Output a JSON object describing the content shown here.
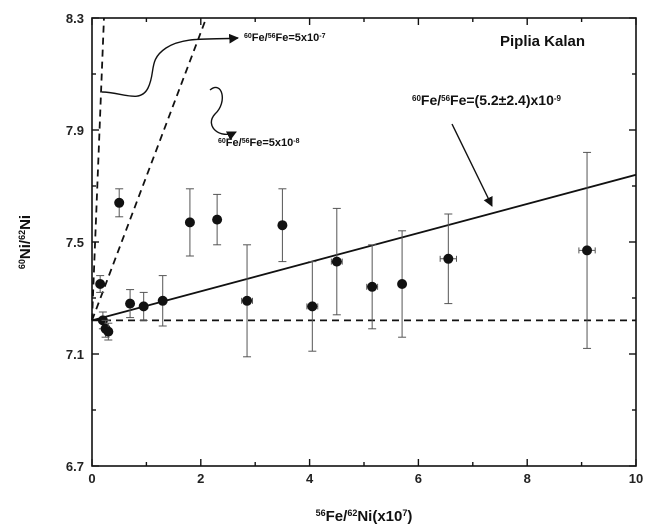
{
  "chart_data": {
    "type": "scatter",
    "title": "Piplia Kalan",
    "xlabel": {
      "sup": "56",
      "main": "Fe/",
      "sup2": "62",
      "main2": "Ni(x10",
      "sup3": "7",
      "end": ")"
    },
    "ylabel": {
      "sup": "60",
      "main": "Ni/",
      "sup2": "62",
      "main2": "Ni"
    },
    "xlim": [
      0,
      10
    ],
    "ylim": [
      6.7,
      8.3
    ],
    "xticks": [
      "0",
      "2",
      "4",
      "6",
      "8",
      "10"
    ],
    "yticks": [
      "6.7",
      "7.1",
      "7.5",
      "7.9",
      "8.3"
    ],
    "points": [
      {
        "x": 0.15,
        "y": 7.35,
        "yerr": 0.03,
        "xerr": 0.05
      },
      {
        "x": 0.2,
        "y": 7.22,
        "yerr": 0.03,
        "xerr": 0.05
      },
      {
        "x": 0.25,
        "y": 7.19,
        "yerr": 0.03,
        "xerr": 0.05
      },
      {
        "x": 0.3,
        "y": 7.18,
        "yerr": 0.03,
        "xerr": 0.05
      },
      {
        "x": 0.5,
        "y": 7.64,
        "yerr": 0.05,
        "xerr": 0.05
      },
      {
        "x": 0.7,
        "y": 7.28,
        "yerr": 0.05,
        "xerr": 0.05
      },
      {
        "x": 0.95,
        "y": 7.27,
        "yerr": 0.05,
        "xerr": 0.05
      },
      {
        "x": 1.3,
        "y": 7.29,
        "yerr": 0.09,
        "xerr": 0.05
      },
      {
        "x": 1.8,
        "y": 7.57,
        "yerr": 0.12,
        "xerr": 0.05
      },
      {
        "x": 2.3,
        "y": 7.58,
        "yerr": 0.09,
        "xerr": 0.05
      },
      {
        "x": 2.85,
        "y": 7.29,
        "yerr": 0.2,
        "xerr": 0.1
      },
      {
        "x": 3.5,
        "y": 7.56,
        "yerr": 0.13,
        "xerr": 0.05
      },
      {
        "x": 4.05,
        "y": 7.27,
        "yerr": 0.16,
        "xerr": 0.1
      },
      {
        "x": 4.5,
        "y": 7.43,
        "yerr": 0.19,
        "xerr": 0.1
      },
      {
        "x": 5.15,
        "y": 7.34,
        "yerr": 0.15,
        "xerr": 0.1
      },
      {
        "x": 5.7,
        "y": 7.35,
        "yerr": 0.19,
        "xerr": 0.05
      },
      {
        "x": 6.55,
        "y": 7.44,
        "yerr": 0.16,
        "xerr": 0.15
      },
      {
        "x": 9.1,
        "y": 7.47,
        "yerr": 0.35,
        "xerr": 0.15
      }
    ],
    "lines": [
      {
        "id": "baseline",
        "style": "dashed",
        "x": [
          0,
          10
        ],
        "y": [
          7.22,
          7.22
        ]
      },
      {
        "id": "fit",
        "style": "solid",
        "x": [
          0,
          10
        ],
        "y": [
          7.22,
          7.74
        ]
      },
      {
        "id": "steep",
        "style": "dashed",
        "x": [
          0,
          2.1
        ],
        "y": [
          7.22,
          8.3
        ]
      },
      {
        "id": "vertical",
        "style": "dashed",
        "x": [
          0,
          0.22
        ],
        "y": [
          7.22,
          8.3
        ]
      }
    ],
    "annotations": [
      {
        "id": "steep-label",
        "sup": "60",
        "a": "Fe/",
        "sup2": "56",
        "b": "Fe=5x10",
        "sup3": "-7",
        "c": ""
      },
      {
        "id": "mid-label",
        "sup": "60",
        "a": "Fe/",
        "sup2": "56",
        "b": "Fe=5x10",
        "sup3": "-8",
        "c": ""
      },
      {
        "id": "fit-label",
        "sup": "60",
        "a": "Fe/",
        "sup2": "56",
        "b": "Fe=(5.2±2.4)x10",
        "sup3": "-9",
        "c": ""
      }
    ],
    "grid": false
  }
}
